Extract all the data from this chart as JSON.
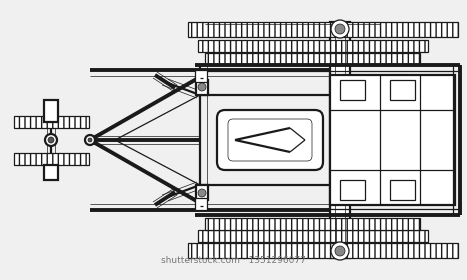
{
  "bg_color": "#f0f0f0",
  "line_color": "#1a1a1a",
  "dark_color": "#111111",
  "gray_color": "#666666",
  "light_gray": "#cccccc",
  "white": "#ffffff",
  "figsize": [
    4.67,
    2.8
  ],
  "dpi": 100,
  "watermark": "shutterstock.com · 1351296077",
  "lw_thick": 2.8,
  "lw_med": 1.6,
  "lw_thin": 0.9,
  "lw_hair": 0.5
}
